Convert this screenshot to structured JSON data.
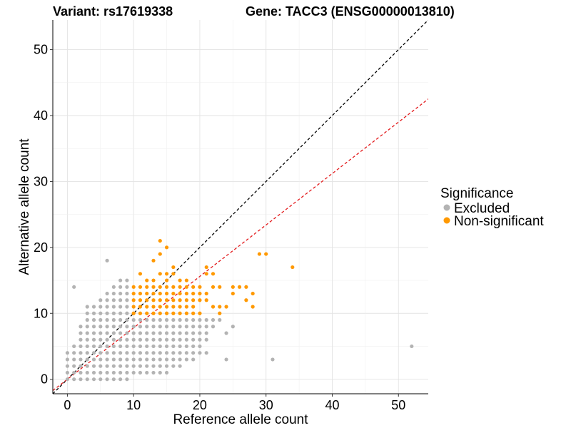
{
  "titles": {
    "variant": "Variant: rs17619338",
    "gene": "Gene: TACC3 (ENSG00000013810)"
  },
  "chart_data": {
    "type": "scatter",
    "xlabel": "Reference allele count",
    "ylabel": "Alternative allele count",
    "xlim": [
      -2.2,
      54.5
    ],
    "ylim": [
      -2.2,
      54.5
    ],
    "xticks": [
      0,
      10,
      20,
      30,
      40,
      50
    ],
    "yticks": [
      0,
      10,
      20,
      30,
      40,
      50
    ],
    "grid": true,
    "legend": {
      "title": "Significance",
      "placement": "right",
      "entries": [
        {
          "label": "Excluded",
          "color": "#b3b3b3"
        },
        {
          "label": "Non-significant",
          "color": "#ff9900"
        }
      ]
    },
    "reference_lines": [
      {
        "slope": 1.0,
        "intercept": 0,
        "color": "#000000",
        "style": "dashed"
      },
      {
        "slope": 0.78,
        "intercept": 0,
        "color": "#e31a1c",
        "style": "dashed"
      }
    ],
    "series": [
      {
        "name": "Excluded",
        "color": "#b3b3b3",
        "points": [
          [
            0,
            0
          ],
          [
            0,
            1
          ],
          [
            0,
            2
          ],
          [
            0,
            3
          ],
          [
            0,
            4
          ],
          [
            1,
            0
          ],
          [
            1,
            1
          ],
          [
            1,
            2
          ],
          [
            1,
            3
          ],
          [
            1,
            4
          ],
          [
            1,
            5
          ],
          [
            1,
            14
          ],
          [
            2,
            0
          ],
          [
            2,
            1
          ],
          [
            2,
            2
          ],
          [
            2,
            3
          ],
          [
            2,
            4
          ],
          [
            2,
            5
          ],
          [
            2,
            6
          ],
          [
            2,
            7
          ],
          [
            2,
            8
          ],
          [
            3,
            0
          ],
          [
            3,
            1
          ],
          [
            3,
            2
          ],
          [
            3,
            3
          ],
          [
            3,
            4
          ],
          [
            3,
            5
          ],
          [
            3,
            6
          ],
          [
            3,
            7
          ],
          [
            3,
            8
          ],
          [
            3,
            9
          ],
          [
            3,
            10
          ],
          [
            3,
            11
          ],
          [
            4,
            0
          ],
          [
            4,
            1
          ],
          [
            4,
            2
          ],
          [
            4,
            3
          ],
          [
            4,
            4
          ],
          [
            4,
            5
          ],
          [
            4,
            6
          ],
          [
            4,
            7
          ],
          [
            4,
            8
          ],
          [
            4,
            9
          ],
          [
            4,
            10
          ],
          [
            4,
            11
          ],
          [
            5,
            0
          ],
          [
            5,
            1
          ],
          [
            5,
            2
          ],
          [
            5,
            3
          ],
          [
            5,
            4
          ],
          [
            5,
            5
          ],
          [
            5,
            6
          ],
          [
            5,
            7
          ],
          [
            5,
            8
          ],
          [
            5,
            9
          ],
          [
            5,
            10
          ],
          [
            5,
            11
          ],
          [
            5,
            12
          ],
          [
            6,
            0
          ],
          [
            6,
            1
          ],
          [
            6,
            2
          ],
          [
            6,
            3
          ],
          [
            6,
            4
          ],
          [
            6,
            5
          ],
          [
            6,
            6
          ],
          [
            6,
            7
          ],
          [
            6,
            8
          ],
          [
            6,
            9
          ],
          [
            6,
            10
          ],
          [
            6,
            11
          ],
          [
            6,
            12
          ],
          [
            6,
            13
          ],
          [
            6,
            18
          ],
          [
            7,
            0
          ],
          [
            7,
            1
          ],
          [
            7,
            2
          ],
          [
            7,
            3
          ],
          [
            7,
            4
          ],
          [
            7,
            5
          ],
          [
            7,
            6
          ],
          [
            7,
            7
          ],
          [
            7,
            8
          ],
          [
            7,
            9
          ],
          [
            7,
            10
          ],
          [
            7,
            11
          ],
          [
            7,
            12
          ],
          [
            7,
            13
          ],
          [
            7,
            14
          ],
          [
            8,
            0
          ],
          [
            8,
            1
          ],
          [
            8,
            2
          ],
          [
            8,
            3
          ],
          [
            8,
            4
          ],
          [
            8,
            5
          ],
          [
            8,
            6
          ],
          [
            8,
            7
          ],
          [
            8,
            8
          ],
          [
            8,
            9
          ],
          [
            8,
            10
          ],
          [
            8,
            11
          ],
          [
            8,
            12
          ],
          [
            8,
            13
          ],
          [
            8,
            14
          ],
          [
            8,
            15
          ],
          [
            9,
            0
          ],
          [
            9,
            1
          ],
          [
            9,
            2
          ],
          [
            9,
            3
          ],
          [
            9,
            4
          ],
          [
            9,
            5
          ],
          [
            9,
            6
          ],
          [
            9,
            7
          ],
          [
            9,
            8
          ],
          [
            9,
            9
          ],
          [
            9,
            10
          ],
          [
            9,
            11
          ],
          [
            9,
            12
          ],
          [
            9,
            13
          ],
          [
            9,
            14
          ],
          [
            9,
            15
          ],
          [
            10,
            1
          ],
          [
            10,
            2
          ],
          [
            10,
            3
          ],
          [
            10,
            4
          ],
          [
            10,
            5
          ],
          [
            10,
            6
          ],
          [
            10,
            7
          ],
          [
            10,
            8
          ],
          [
            10,
            9
          ],
          [
            11,
            1
          ],
          [
            11,
            2
          ],
          [
            11,
            3
          ],
          [
            11,
            4
          ],
          [
            11,
            5
          ],
          [
            11,
            6
          ],
          [
            11,
            7
          ],
          [
            11,
            8
          ],
          [
            11,
            9
          ],
          [
            12,
            1
          ],
          [
            12,
            2
          ],
          [
            12,
            3
          ],
          [
            12,
            4
          ],
          [
            12,
            5
          ],
          [
            12,
            6
          ],
          [
            12,
            7
          ],
          [
            12,
            8
          ],
          [
            12,
            9
          ],
          [
            13,
            1
          ],
          [
            13,
            2
          ],
          [
            13,
            3
          ],
          [
            13,
            4
          ],
          [
            13,
            5
          ],
          [
            13,
            6
          ],
          [
            13,
            7
          ],
          [
            13,
            8
          ],
          [
            13,
            9
          ],
          [
            14,
            1
          ],
          [
            14,
            2
          ],
          [
            14,
            3
          ],
          [
            14,
            4
          ],
          [
            14,
            5
          ],
          [
            14,
            6
          ],
          [
            14,
            7
          ],
          [
            14,
            8
          ],
          [
            14,
            9
          ],
          [
            15,
            1
          ],
          [
            15,
            2
          ],
          [
            15,
            3
          ],
          [
            15,
            4
          ],
          [
            15,
            5
          ],
          [
            15,
            6
          ],
          [
            15,
            7
          ],
          [
            15,
            8
          ],
          [
            15,
            9
          ],
          [
            16,
            2
          ],
          [
            16,
            3
          ],
          [
            16,
            4
          ],
          [
            16,
            5
          ],
          [
            16,
            6
          ],
          [
            16,
            7
          ],
          [
            16,
            8
          ],
          [
            16,
            9
          ],
          [
            17,
            2
          ],
          [
            17,
            3
          ],
          [
            17,
            4
          ],
          [
            17,
            5
          ],
          [
            17,
            6
          ],
          [
            17,
            7
          ],
          [
            17,
            8
          ],
          [
            17,
            9
          ],
          [
            18,
            3
          ],
          [
            18,
            4
          ],
          [
            18,
            5
          ],
          [
            18,
            6
          ],
          [
            18,
            7
          ],
          [
            18,
            8
          ],
          [
            18,
            9
          ],
          [
            19,
            3
          ],
          [
            19,
            4
          ],
          [
            19,
            5
          ],
          [
            19,
            6
          ],
          [
            19,
            7
          ],
          [
            19,
            8
          ],
          [
            19,
            9
          ],
          [
            20,
            4
          ],
          [
            20,
            5
          ],
          [
            20,
            6
          ],
          [
            20,
            7
          ],
          [
            20,
            8
          ],
          [
            20,
            9
          ],
          [
            21,
            4
          ],
          [
            21,
            6
          ],
          [
            21,
            7
          ],
          [
            21,
            8
          ],
          [
            21,
            9
          ],
          [
            22,
            8
          ],
          [
            22,
            9
          ],
          [
            23,
            9
          ],
          [
            24,
            3
          ],
          [
            24,
            7
          ],
          [
            25,
            8
          ],
          [
            31,
            3
          ],
          [
            52,
            5
          ]
        ]
      },
      {
        "name": "Non-significant",
        "color": "#ff9900",
        "points": [
          [
            10,
            10
          ],
          [
            10,
            11
          ],
          [
            10,
            12
          ],
          [
            10,
            13
          ],
          [
            10,
            14
          ],
          [
            11,
            10
          ],
          [
            11,
            11
          ],
          [
            11,
            12
          ],
          [
            11,
            13
          ],
          [
            11,
            14
          ],
          [
            11,
            16
          ],
          [
            12,
            10
          ],
          [
            12,
            11
          ],
          [
            12,
            12
          ],
          [
            12,
            13
          ],
          [
            12,
            14
          ],
          [
            12,
            15
          ],
          [
            13,
            10
          ],
          [
            13,
            11
          ],
          [
            13,
            12
          ],
          [
            13,
            13
          ],
          [
            13,
            14
          ],
          [
            13,
            15
          ],
          [
            13,
            18
          ],
          [
            14,
            10
          ],
          [
            14,
            11
          ],
          [
            14,
            12
          ],
          [
            14,
            13
          ],
          [
            14,
            14
          ],
          [
            14,
            16
          ],
          [
            14,
            19
          ],
          [
            14,
            21
          ],
          [
            15,
            10
          ],
          [
            15,
            11
          ],
          [
            15,
            12
          ],
          [
            15,
            13
          ],
          [
            15,
            14
          ],
          [
            15,
            15
          ],
          [
            15,
            16
          ],
          [
            15,
            20
          ],
          [
            16,
            10
          ],
          [
            16,
            11
          ],
          [
            16,
            12
          ],
          [
            16,
            13
          ],
          [
            16,
            14
          ],
          [
            16,
            16
          ],
          [
            16,
            17
          ],
          [
            17,
            10
          ],
          [
            17,
            11
          ],
          [
            17,
            12
          ],
          [
            17,
            13
          ],
          [
            17,
            14
          ],
          [
            17,
            15
          ],
          [
            18,
            10
          ],
          [
            18,
            11
          ],
          [
            18,
            12
          ],
          [
            18,
            13
          ],
          [
            18,
            14
          ],
          [
            18,
            15
          ],
          [
            19,
            10
          ],
          [
            19,
            11
          ],
          [
            19,
            12
          ],
          [
            19,
            13
          ],
          [
            19,
            14
          ],
          [
            20,
            10
          ],
          [
            20,
            12
          ],
          [
            20,
            13
          ],
          [
            20,
            14
          ],
          [
            21,
            12
          ],
          [
            21,
            13
          ],
          [
            21,
            16
          ],
          [
            21,
            17
          ],
          [
            22,
            11
          ],
          [
            22,
            14
          ],
          [
            22,
            16
          ],
          [
            23,
            10
          ],
          [
            23,
            11
          ],
          [
            23,
            14
          ],
          [
            24,
            11
          ],
          [
            25,
            13
          ],
          [
            25,
            14
          ],
          [
            26,
            14
          ],
          [
            27,
            12
          ],
          [
            27,
            14
          ],
          [
            28,
            11
          ],
          [
            28,
            13
          ],
          [
            29,
            19
          ],
          [
            30,
            19
          ],
          [
            34,
            17
          ]
        ]
      }
    ]
  }
}
